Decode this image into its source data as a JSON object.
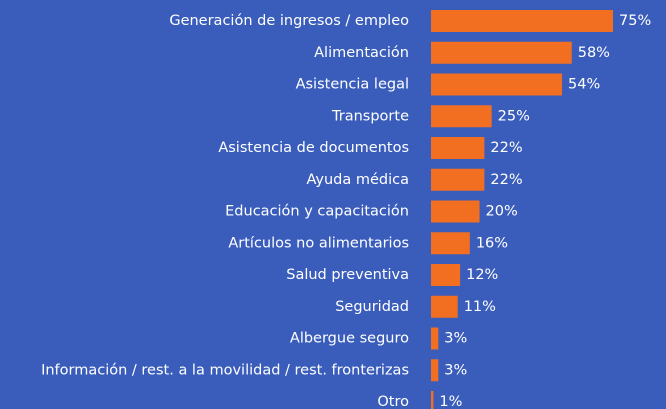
{
  "chart_data": {
    "type": "bar",
    "orientation": "horizontal",
    "categories": [
      "Generación de ingresos / empleo",
      "Alimentación",
      "Asistencia legal",
      "Transporte",
      "Asistencia de documentos",
      "Ayuda médica",
      "Educación y capacitación",
      "Artículos no alimentarios",
      "Salud preventiva",
      "Seguridad",
      "Albergue seguro",
      "Información / rest. a la movilidad / rest. fronterizas",
      "Otro"
    ],
    "values": [
      75,
      58,
      54,
      25,
      22,
      22,
      20,
      16,
      12,
      11,
      3,
      3,
      1
    ],
    "value_labels": [
      "75%",
      "58%",
      "54%",
      "25%",
      "22%",
      "22%",
      "20%",
      "16%",
      "12%",
      "11%",
      "3%",
      "3%",
      "1%"
    ],
    "color": "#f26f21"
  }
}
